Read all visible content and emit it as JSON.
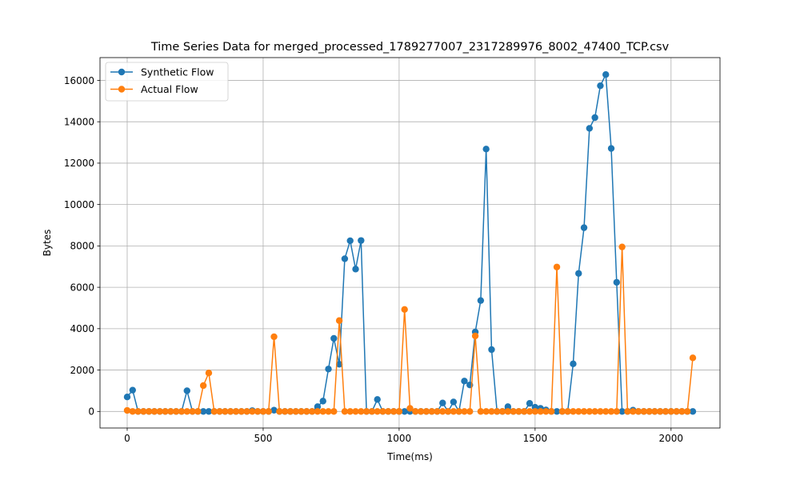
{
  "chart_data": {
    "type": "line",
    "title": "Time Series Data for merged_processed_1789277007_2317289976_8002_47400_TCP.csv",
    "xlabel": "Time(ms)",
    "ylabel": "Bytes",
    "xlim": [
      -100,
      2180
    ],
    "ylim": [
      -800,
      17100
    ],
    "xticks": [
      0,
      500,
      1000,
      1500,
      2000
    ],
    "yticks": [
      0,
      2000,
      4000,
      6000,
      8000,
      10000,
      12000,
      14000,
      16000
    ],
    "grid": true,
    "legend_position": "top-left",
    "x": [
      0,
      20,
      40,
      60,
      80,
      100,
      120,
      140,
      160,
      180,
      200,
      220,
      240,
      260,
      280,
      300,
      320,
      340,
      360,
      380,
      400,
      420,
      440,
      460,
      480,
      500,
      520,
      540,
      560,
      580,
      600,
      620,
      640,
      660,
      680,
      700,
      720,
      740,
      760,
      780,
      800,
      820,
      840,
      860,
      880,
      900,
      920,
      940,
      960,
      980,
      1000,
      1020,
      1040,
      1060,
      1080,
      1100,
      1120,
      1140,
      1160,
      1180,
      1200,
      1220,
      1240,
      1260,
      1280,
      1300,
      1320,
      1340,
      1360,
      1380,
      1400,
      1420,
      1440,
      1460,
      1480,
      1500,
      1520,
      1540,
      1560,
      1580,
      1600,
      1620,
      1640,
      1660,
      1680,
      1700,
      1720,
      1740,
      1760,
      1780,
      1800,
      1820,
      1840,
      1860,
      1880,
      1900,
      1920,
      1940,
      1960,
      1980,
      2000,
      2020,
      2040,
      2060,
      2080
    ],
    "series": [
      {
        "name": "Synthetic Flow",
        "color": "#1f77b4",
        "values": [
          700,
          1030,
          0,
          0,
          0,
          0,
          0,
          0,
          0,
          0,
          0,
          1000,
          0,
          0,
          0,
          0,
          0,
          0,
          0,
          0,
          0,
          0,
          0,
          40,
          0,
          0,
          0,
          60,
          0,
          0,
          0,
          0,
          0,
          0,
          0,
          230,
          500,
          2050,
          3530,
          2280,
          7380,
          8250,
          6880,
          8260,
          0,
          0,
          580,
          0,
          0,
          0,
          0,
          0,
          0,
          0,
          0,
          0,
          0,
          0,
          410,
          0,
          460,
          0,
          1470,
          1280,
          3840,
          5360,
          12680,
          2990,
          0,
          0,
          230,
          0,
          0,
          0,
          390,
          200,
          150,
          70,
          0,
          0,
          0,
          0,
          2300,
          6670,
          8880,
          13680,
          14200,
          15740,
          16280,
          12710,
          6240,
          0,
          0,
          60,
          0,
          0,
          0,
          0,
          0,
          0,
          0,
          0,
          0,
          0,
          0
        ]
      },
      {
        "name": "Actual Flow",
        "color": "#ff7f0e",
        "values": [
          50,
          0,
          0,
          0,
          0,
          0,
          0,
          0,
          0,
          0,
          0,
          0,
          0,
          0,
          1250,
          1860,
          0,
          0,
          0,
          0,
          0,
          0,
          0,
          0,
          0,
          0,
          0,
          3610,
          0,
          0,
          0,
          0,
          0,
          0,
          0,
          0,
          0,
          0,
          0,
          4390,
          0,
          0,
          0,
          0,
          0,
          0,
          0,
          0,
          0,
          0,
          0,
          4930,
          150,
          0,
          0,
          0,
          0,
          0,
          0,
          0,
          0,
          0,
          0,
          0,
          3650,
          0,
          0,
          0,
          0,
          0,
          0,
          0,
          0,
          0,
          0,
          0,
          0,
          0,
          0,
          6980,
          0,
          0,
          0,
          0,
          0,
          0,
          0,
          0,
          0,
          0,
          0,
          7950,
          0,
          0,
          0,
          0,
          0,
          0,
          0,
          0,
          0,
          0,
          0,
          0,
          2590
        ]
      }
    ]
  }
}
